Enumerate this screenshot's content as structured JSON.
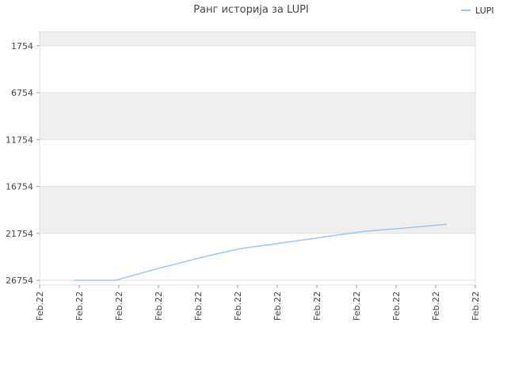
{
  "chart_data": {
    "type": "line",
    "title": "Ранг историја за LUPI",
    "xlabel": "",
    "ylabel": "",
    "y_reversed": true,
    "ylim": [
      27254,
      254
    ],
    "y_ticks": [
      1754,
      6754,
      11754,
      16754,
      21754,
      26754
    ],
    "x_ticks": [
      "Feb.22",
      "Feb.22",
      "Feb.22",
      "Feb.22",
      "Feb.22",
      "Feb.22",
      "Feb.22",
      "Feb.22",
      "Feb.22",
      "Feb.22",
      "Feb.22",
      "Feb.22"
    ],
    "grid": true,
    "legend_position": "top-right",
    "series": [
      {
        "name": "LUPI",
        "color": "#99c7f0",
        "values": [
          26754,
          26754,
          25540,
          24400,
          23400,
          22780,
          22160,
          21540,
          21180,
          20770
        ]
      }
    ]
  }
}
